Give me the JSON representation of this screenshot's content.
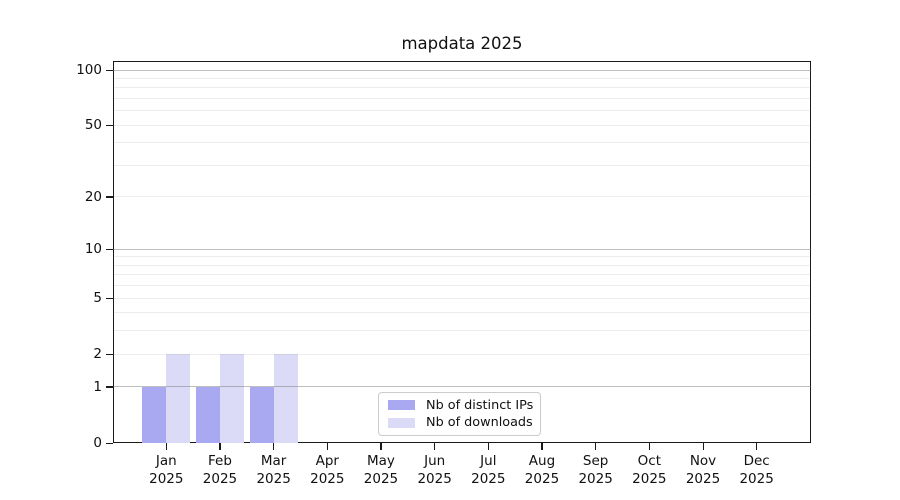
{
  "title": "mapdata 2025",
  "chart_data": {
    "type": "bar",
    "title": "mapdata 2025",
    "categories": [
      "Jan",
      "Feb",
      "Mar",
      "Apr",
      "May",
      "Jun",
      "Jul",
      "Aug",
      "Sep",
      "Oct",
      "Nov",
      "Dec"
    ],
    "category_year": "2025",
    "series": [
      {
        "name": "Nb of distinct IPs",
        "color": "#a9a9f1",
        "values": [
          1,
          1,
          1,
          0,
          0,
          0,
          0,
          0,
          0,
          0,
          0,
          0
        ]
      },
      {
        "name": "Nb of downloads",
        "color": "#dbdbf8",
        "values": [
          2,
          2,
          2,
          0,
          0,
          0,
          0,
          0,
          0,
          0,
          0,
          0
        ]
      }
    ],
    "yticks": [
      0,
      1,
      2,
      5,
      10,
      20,
      50,
      100
    ],
    "minor_gridlines": [
      2,
      3,
      4,
      5,
      6,
      7,
      8,
      9,
      20,
      30,
      40,
      50,
      60,
      70,
      80,
      90
    ],
    "major_gridlines": [
      1,
      10,
      100
    ],
    "scale": "log1p",
    "ylim": [
      0,
      112
    ],
    "xlabel": "",
    "ylabel": "",
    "grid": "horizontal major+minor",
    "legend_position": "lower-center inside axes",
    "colors": {
      "major_grid": "rgba(110,110,110,0.45)",
      "minor_grid": "rgba(110,110,110,0.12)",
      "spine": "#1a1a1a",
      "background": "#ffffff"
    }
  },
  "legend": {
    "entries": [
      {
        "label": "Nb of distinct IPs"
      },
      {
        "label": "Nb of downloads"
      }
    ]
  }
}
